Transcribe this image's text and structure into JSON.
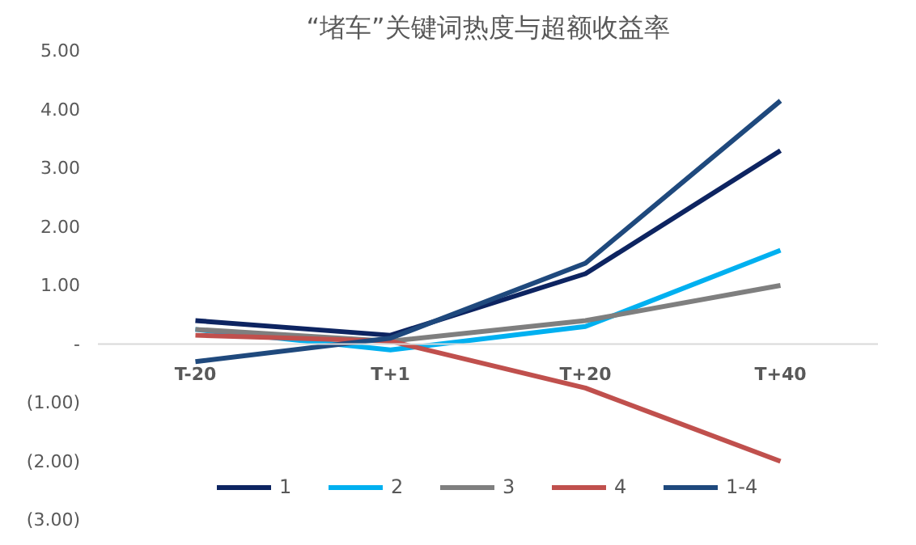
{
  "chart_data": {
    "type": "line",
    "title": "“堵车”关键词热度与超额收益率",
    "categories": [
      "T-20",
      "T+1",
      "T+20",
      "T+40"
    ],
    "series": [
      {
        "name": "1",
        "color": "#0d2461",
        "values": [
          0.4,
          0.15,
          1.2,
          3.3
        ]
      },
      {
        "name": "2",
        "color": "#00b0f0",
        "values": [
          0.25,
          -0.1,
          0.3,
          1.6
        ]
      },
      {
        "name": "3",
        "color": "#7f7f7f",
        "values": [
          0.25,
          0.05,
          0.4,
          1.0
        ]
      },
      {
        "name": "4",
        "color": "#c0504d",
        "values": [
          0.15,
          0.05,
          -0.75,
          -2.0
        ]
      },
      {
        "name": "1-4",
        "color": "#1f497d",
        "values": [
          -0.3,
          0.1,
          1.38,
          4.15
        ]
      }
    ],
    "ylim": [
      -3,
      5
    ],
    "yticks": [
      {
        "value": -3,
        "label": "(3.00)"
      },
      {
        "value": -2,
        "label": "(2.00)"
      },
      {
        "value": -1,
        "label": "(1.00)"
      },
      {
        "value": 0,
        "label": "-"
      },
      {
        "value": 1,
        "label": "1.00"
      },
      {
        "value": 2,
        "label": "2.00"
      },
      {
        "value": 3,
        "label": "3.00"
      },
      {
        "value": 4,
        "label": "4.00"
      },
      {
        "value": 5,
        "label": "5.00"
      }
    ],
    "grid": false,
    "legend": "bottom",
    "marker": "none",
    "line_style": "solid"
  }
}
